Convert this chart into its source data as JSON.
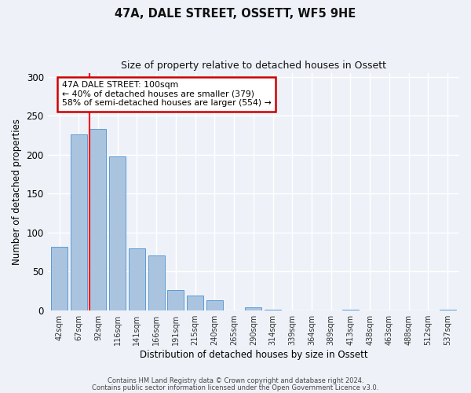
{
  "title": "47A, DALE STREET, OSSETT, WF5 9HE",
  "subtitle": "Size of property relative to detached houses in Ossett",
  "xlabel": "Distribution of detached houses by size in Ossett",
  "ylabel": "Number of detached properties",
  "bin_labels": [
    "42sqm",
    "67sqm",
    "92sqm",
    "116sqm",
    "141sqm",
    "166sqm",
    "191sqm",
    "215sqm",
    "240sqm",
    "265sqm",
    "290sqm",
    "314sqm",
    "339sqm",
    "364sqm",
    "389sqm",
    "413sqm",
    "438sqm",
    "463sqm",
    "488sqm",
    "512sqm",
    "537sqm"
  ],
  "bar_heights": [
    82,
    226,
    233,
    198,
    80,
    70,
    26,
    19,
    13,
    0,
    4,
    1,
    0,
    0,
    0,
    1,
    0,
    0,
    0,
    0,
    1
  ],
  "bar_color": "#aac4e0",
  "bar_edgecolor": "#5b9bd5",
  "property_bin_index": 2,
  "annotation_title": "47A DALE STREET: 100sqm",
  "annotation_line1": "← 40% of detached houses are smaller (379)",
  "annotation_line2": "58% of semi-detached houses are larger (554) →",
  "annotation_box_color": "#ffffff",
  "annotation_box_edgecolor": "#cc0000",
  "ylim": [
    0,
    305
  ],
  "yticks": [
    0,
    50,
    100,
    150,
    200,
    250,
    300
  ],
  "background_color": "#eef2f8",
  "grid_color": "#ffffff",
  "footer1": "Contains HM Land Registry data © Crown copyright and database right 2024.",
  "footer2": "Contains public sector information licensed under the Open Government Licence v3.0."
}
